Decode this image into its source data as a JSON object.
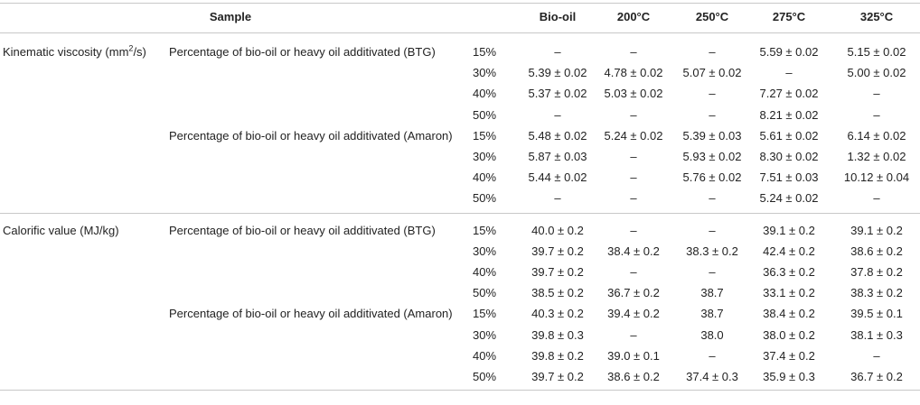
{
  "table": {
    "header": {
      "sample": "Sample",
      "columns": [
        "Bio-oil",
        "200°C",
        "250°C",
        "275°C",
        "325°C"
      ]
    },
    "groups": [
      {
        "property": "Kinematic viscosity (mm",
        "property_sup": "2",
        "property_suffix": "/s)",
        "subgroups": [
          {
            "label": "Percentage of bio-oil or heavy oil additivated (BTG)",
            "rows": [
              {
                "pct": "15%",
                "values": [
                  "–",
                  "–",
                  "–",
                  "5.59 ± 0.02",
                  "5.15 ± 0.02"
                ]
              },
              {
                "pct": "30%",
                "values": [
                  "5.39 ± 0.02",
                  "4.78 ± 0.02",
                  "5.07 ± 0.02",
                  "–",
                  "5.00 ± 0.02"
                ]
              },
              {
                "pct": "40%",
                "values": [
                  "5.37 ± 0.02",
                  "5.03 ± 0.02",
                  "–",
                  "7.27 ± 0.02",
                  "–"
                ]
              },
              {
                "pct": "50%",
                "values": [
                  "–",
                  "–",
                  "–",
                  "8.21 ± 0.02",
                  "–"
                ]
              }
            ]
          },
          {
            "label": "Percentage of bio-oil or heavy oil additivated (Amaron)",
            "rows": [
              {
                "pct": "15%",
                "values": [
                  "5.48 ± 0.02",
                  "5.24 ± 0.02",
                  "5.39 ± 0.03",
                  "5.61 ± 0.02",
                  "6.14 ± 0.02"
                ]
              },
              {
                "pct": "30%",
                "values": [
                  "5.87 ± 0.03",
                  "–",
                  "5.93 ± 0.02",
                  "8.30 ± 0.02",
                  "1.32 ± 0.02"
                ]
              },
              {
                "pct": "40%",
                "values": [
                  "5.44 ± 0.02",
                  "–",
                  "5.76 ± 0.02",
                  "7.51 ± 0.03",
                  "10.12 ± 0.04"
                ]
              },
              {
                "pct": "50%",
                "values": [
                  "–",
                  "–",
                  "–",
                  "5.24 ± 0.02",
                  "–"
                ]
              }
            ]
          }
        ]
      },
      {
        "property": "Calorific value (MJ/kg)",
        "property_sup": "",
        "property_suffix": "",
        "subgroups": [
          {
            "label": "Percentage of bio-oil or heavy oil additivated (BTG)",
            "rows": [
              {
                "pct": "15%",
                "values": [
                  "40.0 ± 0.2",
                  "–",
                  "–",
                  "39.1 ± 0.2",
                  "39.1 ± 0.2"
                ]
              },
              {
                "pct": "30%",
                "values": [
                  "39.7 ± 0.2",
                  "38.4 ± 0.2",
                  "38.3 ± 0.2",
                  "42.4 ± 0.2",
                  "38.6 ± 0.2"
                ]
              },
              {
                "pct": "40%",
                "values": [
                  "39.7 ± 0.2",
                  "–",
                  "–",
                  "36.3 ± 0.2",
                  "37.8 ± 0.2"
                ]
              },
              {
                "pct": "50%",
                "values": [
                  "38.5 ± 0.2",
                  "36.7 ± 0.2",
                  "38.7",
                  "33.1 ± 0.2",
                  "38.3 ± 0.2"
                ]
              }
            ]
          },
          {
            "label": "Percentage of bio-oil or heavy oil additivated (Amaron)",
            "rows": [
              {
                "pct": "15%",
                "values": [
                  "40.3 ± 0.2",
                  "39.4 ± 0.2",
                  "38.7",
                  "38.4 ± 0.2",
                  "39.5 ± 0.1"
                ]
              },
              {
                "pct": "30%",
                "values": [
                  "39.8 ± 0.3",
                  "–",
                  "38.0",
                  "38.0 ± 0.2",
                  "38.1 ± 0.3"
                ]
              },
              {
                "pct": "40%",
                "values": [
                  "39.8 ± 0.2",
                  "39.0 ± 0.1",
                  "–",
                  "37.4 ± 0.2",
                  "–"
                ]
              },
              {
                "pct": "50%",
                "values": [
                  "39.7 ± 0.2",
                  "38.6 ± 0.2",
                  "37.4 ± 0.3",
                  "35.9 ± 0.3",
                  "36.7 ± 0.2"
                ]
              }
            ]
          }
        ]
      }
    ]
  }
}
